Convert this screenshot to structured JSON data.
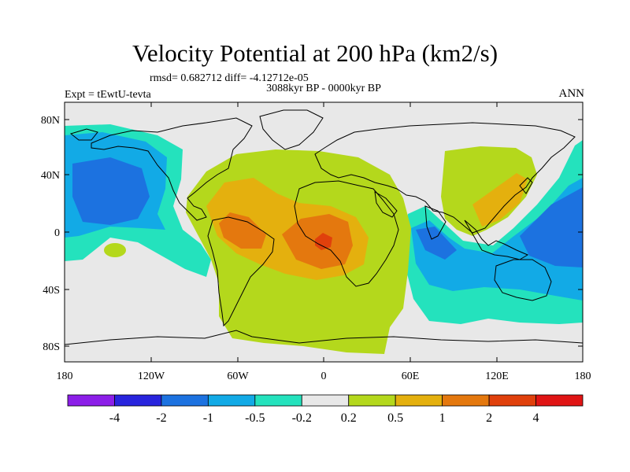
{
  "map": {
    "title": "Velocity Potential at 200 hPa (km2/s)",
    "stats": "rmsd= 0.682712 diff= -4.12712e-05",
    "subtitle": "3088kyr BP - 0000kyr BP",
    "experiment": "Expt = tEwtU-tevta",
    "season": "ANN",
    "lat_ticks": [
      "80N",
      "40N",
      "0",
      "40S",
      "80S"
    ],
    "lon_ticks": [
      "180",
      "120W",
      "60W",
      "0",
      "60E",
      "120E",
      "180"
    ],
    "colorbar": {
      "colors": [
        "#8c1ee8",
        "#2824dd",
        "#1c72e0",
        "#12aae6",
        "#24e2bd",
        "#e8e8e8",
        "#b4d81c",
        "#e4b00e",
        "#e4780e",
        "#e0400c",
        "#e01414"
      ],
      "labels": [
        "-4",
        "-2",
        "-1",
        "-0.5",
        "-0.2",
        "0.2",
        "0.5",
        "1",
        "2",
        "4"
      ]
    },
    "colors": {
      "land_line": "#000000",
      "neutral": "#e8e8e8",
      "pos_02": "#b4d81c",
      "pos_05": "#e4b00e",
      "pos_1": "#e4780e",
      "neg_02": "#24e2bd",
      "neg_05": "#12aae6",
      "neg_1": "#1c72e0"
    }
  }
}
